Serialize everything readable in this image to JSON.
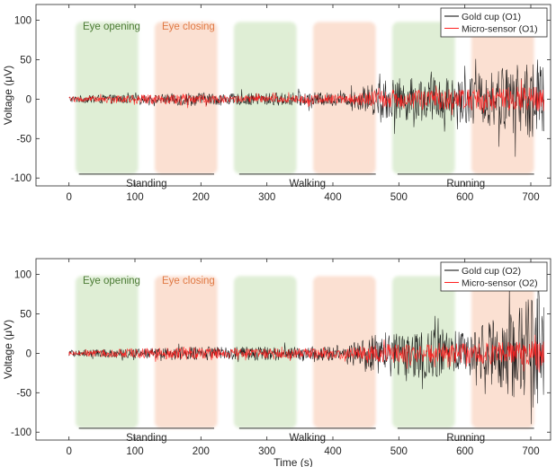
{
  "chart_data": [
    {
      "type": "line",
      "panel": "O1",
      "xlabel": "",
      "ylabel": "Voltage (μV)",
      "xlim": [
        -50,
        730
      ],
      "ylim": [
        -110,
        120
      ],
      "xticks": [
        0,
        100,
        200,
        300,
        400,
        500,
        600,
        700
      ],
      "yticks": [
        -100,
        -50,
        0,
        50,
        100
      ],
      "grid": false,
      "legend_position": "top-right",
      "series": [
        {
          "name": "Gold cup (O1)",
          "color": "#000000",
          "x": [
            0,
            60,
            120,
            180,
            240,
            300,
            360,
            420,
            480,
            540,
            600,
            650,
            690,
            720
          ],
          "amplitude": [
            4,
            6,
            5,
            9,
            7,
            8,
            9,
            8,
            26,
            28,
            30,
            38,
            48,
            55
          ]
        },
        {
          "name": "Micro-sensor (O1)",
          "color": "#ff2020",
          "x": [
            0,
            60,
            120,
            180,
            240,
            300,
            360,
            420,
            480,
            540,
            600,
            650,
            690,
            720
          ],
          "amplitude": [
            3,
            5,
            6,
            7,
            5,
            5,
            6,
            6,
            12,
            12,
            14,
            15,
            16,
            17
          ]
        }
      ],
      "conditions": [
        {
          "label": "Standing",
          "x": [
            15,
            220
          ]
        },
        {
          "label": "Walking",
          "x": [
            258,
            465
          ]
        },
        {
          "label": "Running",
          "x": [
            498,
            705
          ]
        }
      ],
      "phases": [
        {
          "label": "Eye opening",
          "color": "#4a7a33",
          "fill": "#dfeed5",
          "x": [
            10,
            105
          ]
        },
        {
          "label": "Eye closing",
          "color": "#e07a45",
          "fill": "#fbe0d2",
          "x": [
            130,
            225
          ]
        },
        {
          "label": "",
          "color": "#4a7a33",
          "fill": "#dfeed5",
          "x": [
            250,
            345
          ]
        },
        {
          "label": "",
          "color": "#e07a45",
          "fill": "#fbe0d2",
          "x": [
            370,
            465
          ]
        },
        {
          "label": "",
          "color": "#4a7a33",
          "fill": "#dfeed5",
          "x": [
            490,
            585
          ]
        },
        {
          "label": "",
          "color": "#e07a45",
          "fill": "#fbe0d2",
          "x": [
            610,
            705
          ]
        }
      ]
    },
    {
      "type": "line",
      "panel": "O2",
      "xlabel": "Time (s)",
      "ylabel": "Voltage (μV)",
      "xlim": [
        -50,
        730
      ],
      "ylim": [
        -110,
        120
      ],
      "xticks": [
        0,
        100,
        200,
        300,
        400,
        500,
        600,
        700
      ],
      "yticks": [
        -100,
        -50,
        0,
        50,
        100
      ],
      "grid": false,
      "legend_position": "top-right",
      "series": [
        {
          "name": "Gold cup (O2)",
          "color": "#000000",
          "x": [
            0,
            60,
            120,
            180,
            240,
            300,
            360,
            420,
            480,
            540,
            600,
            650,
            690,
            720
          ],
          "amplitude": [
            4,
            6,
            6,
            9,
            8,
            9,
            9,
            10,
            30,
            32,
            28,
            45,
            65,
            75
          ]
        },
        {
          "name": "Micro-sensor (O2)",
          "color": "#ff2020",
          "x": [
            0,
            60,
            120,
            180,
            240,
            300,
            360,
            420,
            480,
            540,
            600,
            650,
            690,
            720
          ],
          "amplitude": [
            3,
            5,
            7,
            8,
            6,
            6,
            7,
            7,
            12,
            12,
            13,
            14,
            15,
            16
          ]
        }
      ],
      "conditions": [
        {
          "label": "Standing",
          "x": [
            15,
            220
          ]
        },
        {
          "label": "Walking",
          "x": [
            258,
            465
          ]
        },
        {
          "label": "Running",
          "x": [
            498,
            705
          ]
        }
      ],
      "phases": [
        {
          "label": "Eye opening",
          "color": "#4a7a33",
          "fill": "#dfeed5",
          "x": [
            10,
            105
          ]
        },
        {
          "label": "Eye closing",
          "color": "#e07a45",
          "fill": "#fbe0d2",
          "x": [
            130,
            225
          ]
        },
        {
          "label": "",
          "color": "#4a7a33",
          "fill": "#dfeed5",
          "x": [
            250,
            345
          ]
        },
        {
          "label": "",
          "color": "#e07a45",
          "fill": "#fbe0d2",
          "x": [
            370,
            465
          ]
        },
        {
          "label": "",
          "color": "#4a7a33",
          "fill": "#dfeed5",
          "x": [
            490,
            585
          ]
        },
        {
          "label": "",
          "color": "#e07a45",
          "fill": "#fbe0d2",
          "x": [
            610,
            705
          ]
        }
      ]
    }
  ]
}
